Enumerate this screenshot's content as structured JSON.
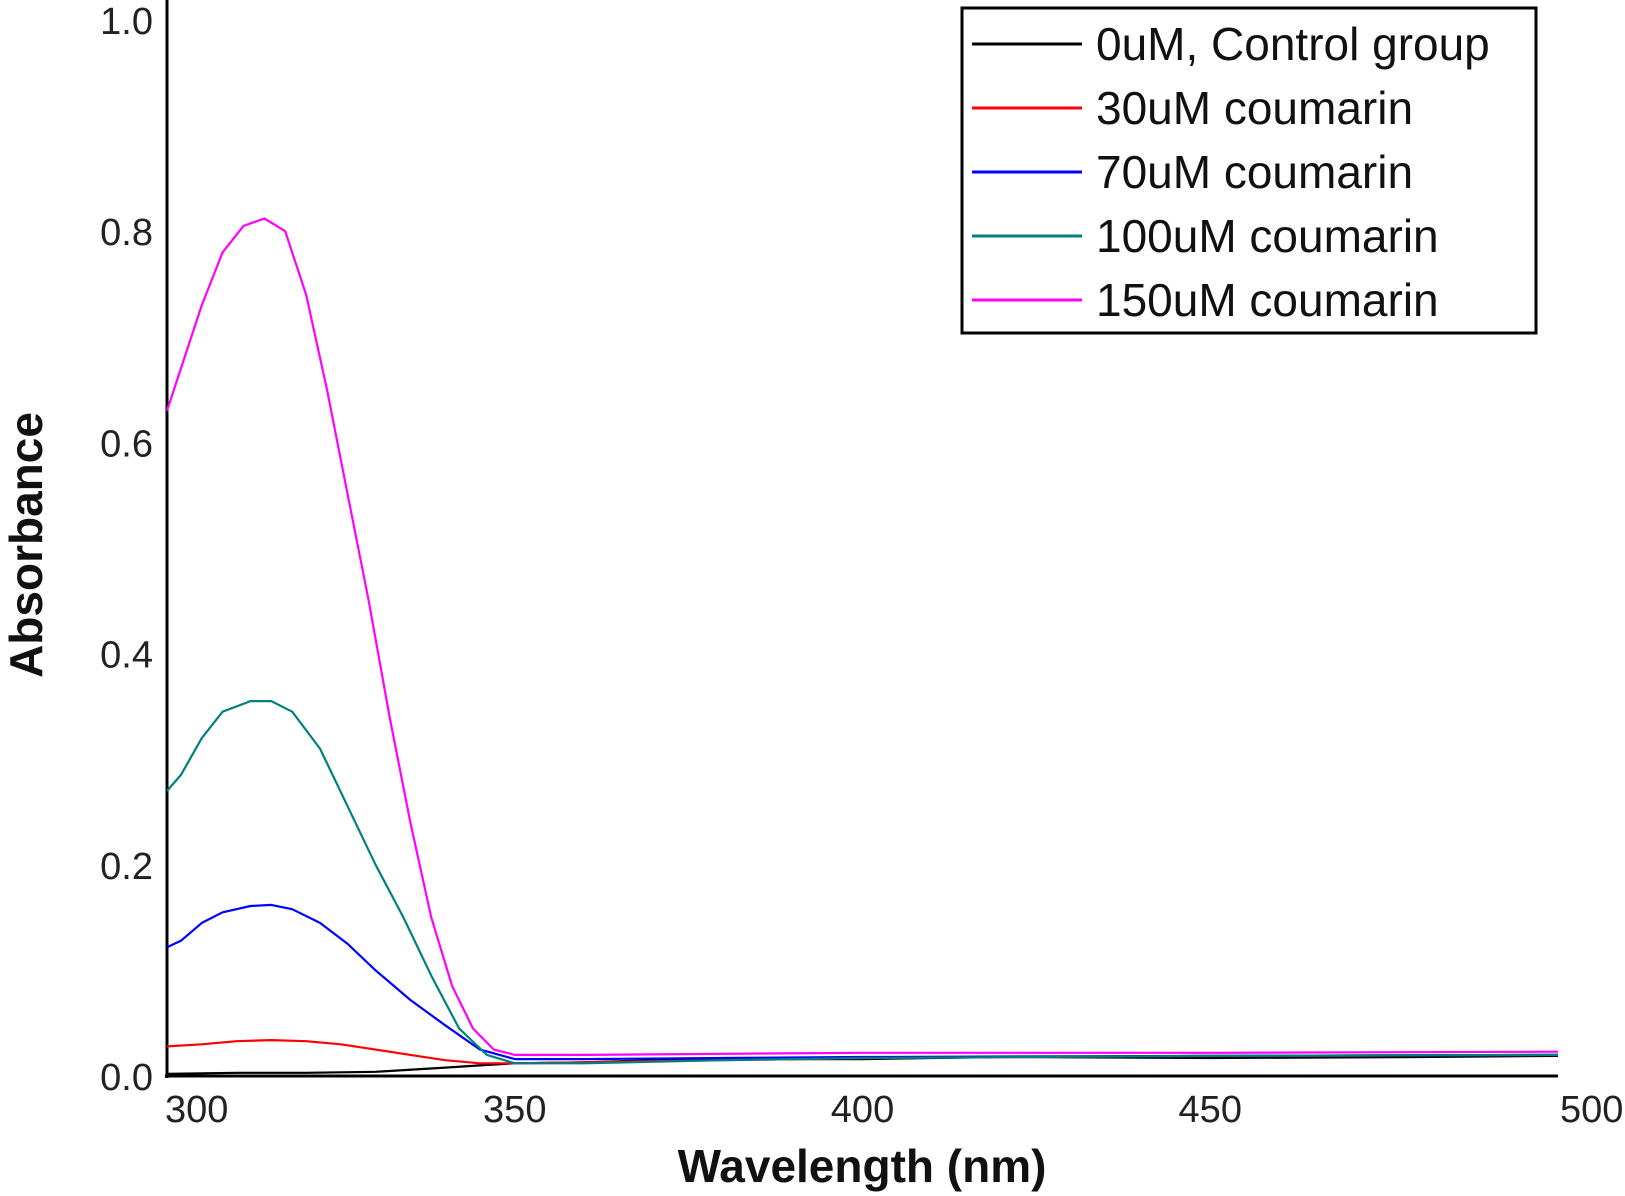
{
  "chart_data": {
    "type": "line",
    "xlabel": "Wavelength (nm)",
    "ylabel": "Absorbance",
    "xlim": [
      300,
      500
    ],
    "ylim": [
      0.0,
      1.0
    ],
    "x_ticks": [
      "300",
      "350",
      "400",
      "450",
      "500"
    ],
    "y_ticks": [
      "0.0",
      "0.2",
      "0.4",
      "0.6",
      "0.8",
      "1.0"
    ],
    "grid": false,
    "legend_position": "top-right",
    "series": [
      {
        "name": "0uM, Control group",
        "color": "#000000",
        "x": [
          300,
          310,
          320,
          330,
          340,
          345,
          350,
          360,
          370,
          380,
          400,
          420,
          450,
          480,
          500
        ],
        "y": [
          0.002,
          0.003,
          0.003,
          0.004,
          0.008,
          0.01,
          0.012,
          0.013,
          0.015,
          0.016,
          0.016,
          0.018,
          0.017,
          0.018,
          0.019
        ]
      },
      {
        "name": "30uM coumarin",
        "color": "#ff0000",
        "x": [
          300,
          305,
          310,
          315,
          320,
          325,
          330,
          335,
          340,
          345,
          350,
          360,
          380,
          400,
          450,
          500
        ],
        "y": [
          0.028,
          0.03,
          0.033,
          0.034,
          0.033,
          0.03,
          0.025,
          0.02,
          0.015,
          0.012,
          0.012,
          0.013,
          0.015,
          0.017,
          0.019,
          0.02
        ]
      },
      {
        "name": "70uM coumarin",
        "color": "#0000ff",
        "x": [
          300,
          302,
          305,
          308,
          312,
          315,
          318,
          322,
          326,
          330,
          335,
          340,
          345,
          350,
          360,
          380,
          400,
          450,
          500
        ],
        "y": [
          0.122,
          0.128,
          0.145,
          0.155,
          0.161,
          0.162,
          0.158,
          0.145,
          0.125,
          0.1,
          0.072,
          0.048,
          0.025,
          0.016,
          0.016,
          0.017,
          0.018,
          0.019,
          0.02
        ]
      },
      {
        "name": "100uM coumarin",
        "color": "#008080",
        "x": [
          300,
          302,
          305,
          308,
          312,
          315,
          318,
          322,
          326,
          330,
          334,
          338,
          342,
          346,
          350,
          360,
          380,
          400,
          450,
          500
        ],
        "y": [
          0.27,
          0.285,
          0.32,
          0.345,
          0.355,
          0.355,
          0.345,
          0.31,
          0.255,
          0.2,
          0.15,
          0.095,
          0.045,
          0.02,
          0.012,
          0.012,
          0.015,
          0.017,
          0.019,
          0.02
        ]
      },
      {
        "name": "150uM coumarin",
        "color": "#ff00ff",
        "x": [
          300,
          302,
          305,
          308,
          311,
          314,
          317,
          320,
          323,
          326,
          329,
          332,
          335,
          338,
          341,
          344,
          347,
          350,
          355,
          360,
          380,
          400,
          450,
          500
        ],
        "y": [
          0.63,
          0.67,
          0.73,
          0.78,
          0.805,
          0.812,
          0.8,
          0.74,
          0.65,
          0.55,
          0.45,
          0.34,
          0.24,
          0.15,
          0.085,
          0.045,
          0.025,
          0.02,
          0.02,
          0.02,
          0.021,
          0.022,
          0.022,
          0.023
        ]
      }
    ]
  }
}
